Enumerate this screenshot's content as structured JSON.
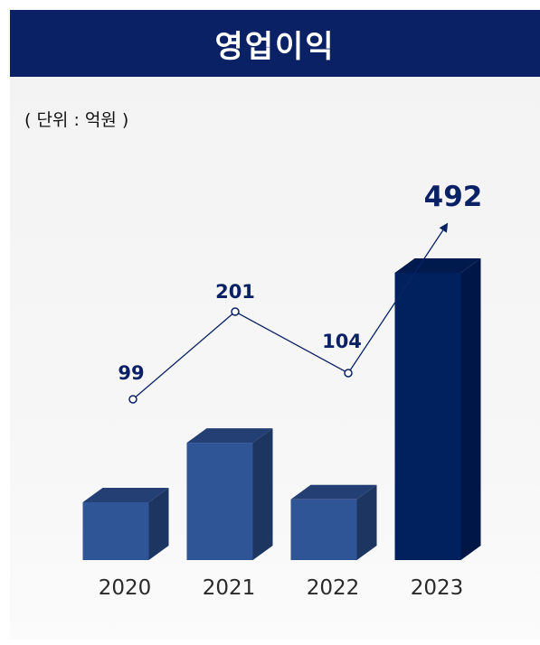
{
  "title": "영업이익",
  "unit_label": "( 단위 : 억원 )",
  "colors": {
    "header_bg": "#0a2265",
    "bar_front": "#2f5597",
    "bar_top": "#243f74",
    "bar_side": "#1d3561",
    "highlight_front": "#00215e",
    "highlight_top": "#001a4d",
    "highlight_side": "#001646",
    "line": "#0a2265"
  },
  "chart_data": {
    "type": "bar",
    "categories": [
      "2020",
      "2021",
      "2022",
      "2023"
    ],
    "values": [
      99,
      201,
      104,
      492
    ],
    "data_labels": [
      "99",
      "201",
      "104",
      "492"
    ],
    "highlight_index": 3,
    "trend_line": true,
    "trend_arrow_end": true,
    "title": "영업이익",
    "xlabel": "",
    "ylabel": "",
    "grid": false
  }
}
